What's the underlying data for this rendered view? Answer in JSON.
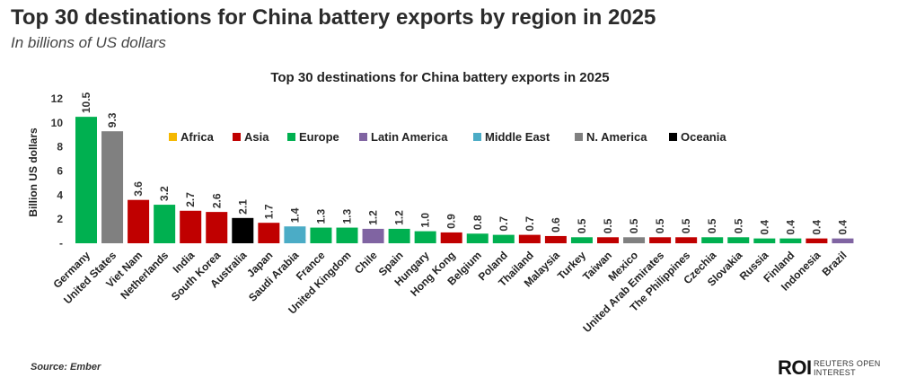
{
  "header": {
    "title": "Top 30 destinations for China battery exports by region in 2025",
    "subtitle": "In billions of US dollars"
  },
  "footer": {
    "source": "Source:  Ember",
    "logo_mark": "ROI",
    "logo_text": "REUTERS OPEN INTEREST"
  },
  "chart_data": {
    "type": "bar",
    "title": "Top 30 destinations for China battery exports in 2025",
    "xlabel": "",
    "ylabel": "Billion US dollars",
    "ylim": [
      0,
      12
    ],
    "yticks": [
      0,
      2,
      4,
      6,
      8,
      10,
      12
    ],
    "ytick_labels": [
      "-",
      "2",
      "4",
      "6",
      "8",
      "10",
      "12"
    ],
    "grid": false,
    "legend_position": "top-center",
    "regions": [
      {
        "name": "Africa",
        "color": "#f5b800"
      },
      {
        "name": "Asia",
        "color": "#c00000"
      },
      {
        "name": "Europe",
        "color": "#00b050"
      },
      {
        "name": "Latin America",
        "color": "#8064a2"
      },
      {
        "name": "Middle East",
        "color": "#4bacc6"
      },
      {
        "name": "N. America",
        "color": "#808080"
      },
      {
        "name": "Oceania",
        "color": "#000000"
      }
    ],
    "categories": [
      "Germany",
      "United States",
      "Viet Nam",
      "Netherlands",
      "India",
      "South Korea",
      "Australia",
      "Japan",
      "Saudi Arabia",
      "France",
      "United Kingdom",
      "Chile",
      "Spain",
      "Hungary",
      "Hong Kong",
      "Belgium",
      "Poland",
      "Thailand",
      "Malaysia",
      "Turkey",
      "Taiwan",
      "Mexico",
      "United Arab Emirates",
      "The Philippines",
      "Czechia",
      "Slovakia",
      "Russia",
      "Finland",
      "Indonesia",
      "Brazil"
    ],
    "values": [
      10.5,
      9.3,
      3.6,
      3.2,
      2.7,
      2.6,
      2.1,
      1.7,
      1.4,
      1.3,
      1.3,
      1.2,
      1.2,
      1.0,
      0.9,
      0.8,
      0.7,
      0.7,
      0.6,
      0.5,
      0.5,
      0.5,
      0.5,
      0.5,
      0.5,
      0.5,
      0.4,
      0.4,
      0.4,
      0.4
    ],
    "value_labels": [
      "10.5",
      "9.3",
      "3.6",
      "3.2",
      "2.7",
      "2.6",
      "2.1",
      "1.7",
      "1.4",
      "1.3",
      "1.3",
      "1.2",
      "1.2",
      "1.0",
      "0.9",
      "0.8",
      "0.7",
      "0.7",
      "0.6",
      "0.5",
      "0.5",
      "0.5",
      "0.5",
      "0.5",
      "0.5",
      "0.5",
      "0.4",
      "0.4",
      "0.4",
      "0.4"
    ],
    "region_of": [
      "Europe",
      "N. America",
      "Asia",
      "Europe",
      "Asia",
      "Asia",
      "Oceania",
      "Asia",
      "Middle East",
      "Europe",
      "Europe",
      "Latin America",
      "Europe",
      "Europe",
      "Asia",
      "Europe",
      "Europe",
      "Asia",
      "Asia",
      "Europe",
      "Asia",
      "N. America",
      "Asia",
      "Asia",
      "Europe",
      "Europe",
      "Europe",
      "Europe",
      "Asia",
      "Latin America"
    ]
  }
}
